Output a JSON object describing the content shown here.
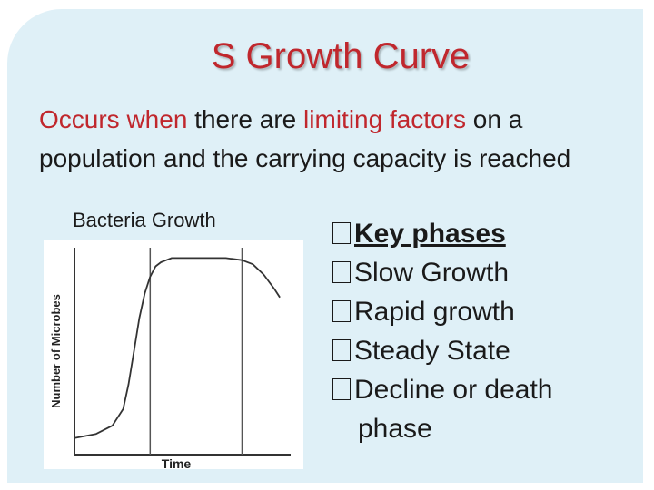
{
  "title": "S Growth Curve",
  "intro": {
    "part1": "Occurs when",
    "part2": " there are ",
    "part3": "limiting factors",
    "part4": " on a population and the carrying capacity is reached"
  },
  "chart_label": "Bacteria Growth",
  "key_phases": {
    "heading": "Key phases",
    "items": [
      "Slow Growth",
      "Rapid growth",
      "Steady State",
      "Decline or death"
    ],
    "continuation": "phase"
  },
  "chart_data": {
    "type": "line",
    "xlabel": "Time",
    "ylabel": "Number of Microbes",
    "x": [
      0,
      4,
      7,
      9,
      10,
      11,
      12,
      13,
      14,
      15,
      16,
      17,
      18,
      19,
      20,
      24,
      28,
      31,
      33,
      35,
      37,
      38
    ],
    "y": [
      8,
      10,
      14,
      22,
      34,
      50,
      66,
      78,
      86,
      91,
      93,
      94,
      95,
      95,
      95,
      95,
      95,
      94,
      92,
      87,
      80,
      76
    ],
    "xlim": [
      0,
      40
    ],
    "ylim": [
      0,
      100
    ],
    "phase_dividers": [
      14,
      31
    ],
    "grid": false,
    "colors": {
      "line": "#333333",
      "divider": "#555555"
    }
  }
}
